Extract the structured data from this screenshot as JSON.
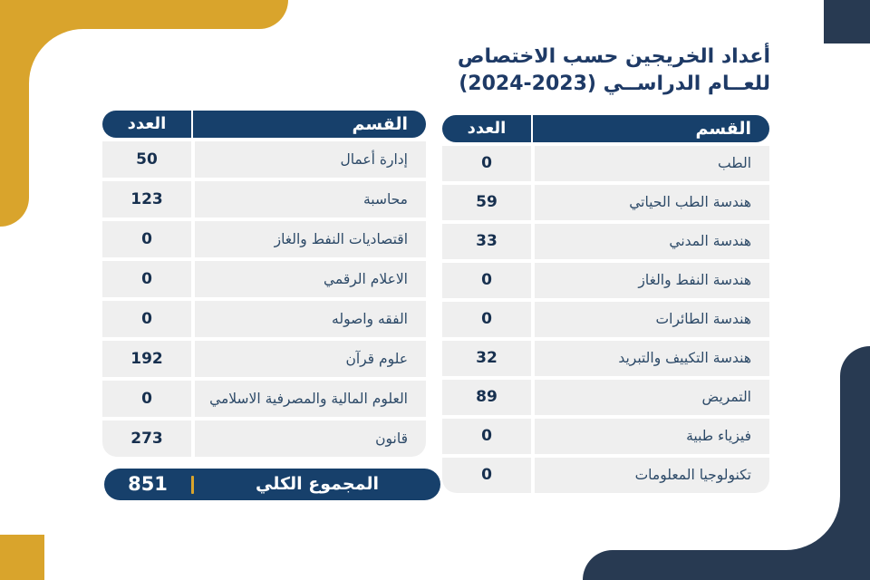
{
  "title": {
    "line1": "أعداد الخريجين حسب الاختصاص",
    "line2": "للعــام الدراســي (2023-2024)"
  },
  "tables": {
    "right": {
      "headers": {
        "department": "القسم",
        "count": "العدد"
      },
      "rows": [
        {
          "department": "الطب",
          "count": "0"
        },
        {
          "department": "هندسة الطب الحياتي",
          "count": "59"
        },
        {
          "department": "هندسة المدني",
          "count": "33"
        },
        {
          "department": "هندسة النفط والغاز",
          "count": "0"
        },
        {
          "department": "هندسة الطائرات",
          "count": "0"
        },
        {
          "department": "هندسة التكييف والتبريد",
          "count": "32"
        },
        {
          "department": "التمريض",
          "count": "89"
        },
        {
          "department": "فيزياء طبية",
          "count": "0"
        },
        {
          "department": "تكنولوجيا المعلومات",
          "count": "0"
        }
      ]
    },
    "left": {
      "headers": {
        "department": "القسم",
        "count": "العدد"
      },
      "rows": [
        {
          "department": "إدارة أعمال",
          "count": "50"
        },
        {
          "department": "محاسبة",
          "count": "123"
        },
        {
          "department": "اقتصاديات النفط والغاز",
          "count": "0"
        },
        {
          "department": "الاعلام الرقمي",
          "count": "0"
        },
        {
          "department": "الفقه واصوله",
          "count": "0"
        },
        {
          "department": "علوم قرآن",
          "count": "192"
        },
        {
          "department": "العلوم المالية والمصرفية الاسلامي",
          "count": "0"
        },
        {
          "department": "قانون",
          "count": "273"
        }
      ]
    }
  },
  "total": {
    "label": "المجموع الكلي",
    "value": "851"
  },
  "colors": {
    "header_navy": "#17406b",
    "ornament_navy": "#283a52",
    "gold": "#d9a42c",
    "row_bg": "#efefef",
    "title_text": "#1e3a66",
    "department_text": "#2d4a68",
    "number_text": "#17304f"
  }
}
